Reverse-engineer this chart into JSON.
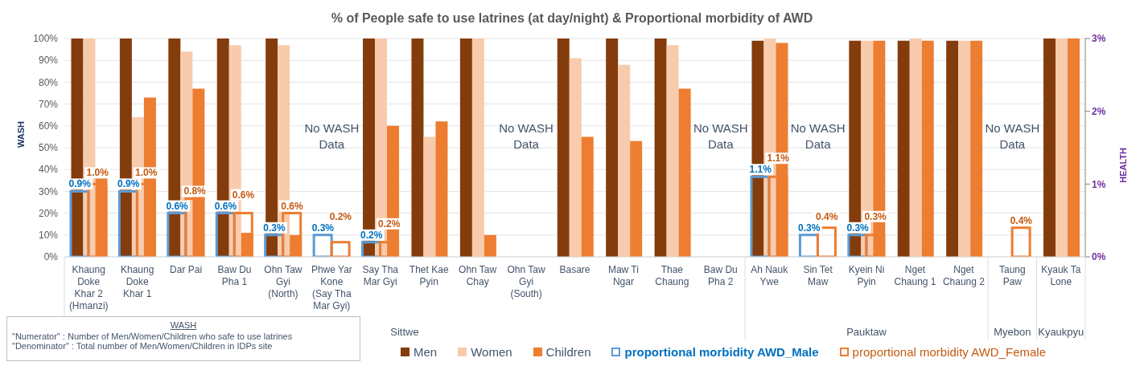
{
  "chart_data": {
    "type": "bar",
    "title": "% of People safe to use latrines (at day/night) & Proportional morbidity of AWD",
    "ylabel": "WASH",
    "y2label": "HEALTH",
    "categories": [
      "Khaung Doke Khar 2 (Hmanzi)",
      "Khaung Doke Khar 1",
      "Dar Pai",
      "Baw Du Pha 1",
      "Ohn Taw Gyi (North)",
      "Phwe Yar Kone (Say Tha Mar Gyi)",
      "Say Tha Mar Gyi",
      "Thet Kae Pyin",
      "Ohn Taw Chay",
      "Ohn Taw Gyi (South)",
      "Basare",
      "Maw Ti Ngar",
      "Thae Chaung",
      "Baw Du Pha 2",
      "Ah Nauk Ywe",
      "Sin Tet Maw",
      "Kyein Ni Pyin",
      "Nget Chaung 1",
      "Nget Chaung 2",
      "Taung Paw",
      "Kyauk Ta Lone"
    ],
    "series": [
      {
        "name": "Men",
        "color": "#843c0c",
        "values": [
          100,
          100,
          100,
          100,
          100,
          null,
          100,
          100,
          100,
          null,
          100,
          100,
          100,
          null,
          99,
          null,
          99,
          99,
          99,
          null,
          100
        ]
      },
      {
        "name": "Women",
        "color": "#f8cbad",
        "values": [
          100,
          64,
          94,
          97,
          97,
          null,
          100,
          55,
          100,
          null,
          91,
          88,
          97,
          null,
          100,
          null,
          99,
          100,
          99,
          null,
          100
        ]
      },
      {
        "name": "Children",
        "color": "#ed7d31",
        "values": [
          36,
          73,
          77,
          11,
          10,
          null,
          60,
          62,
          10,
          null,
          55,
          53,
          77,
          null,
          98,
          null,
          99,
          99,
          99,
          null,
          100
        ]
      },
      {
        "name": "proportional morbidity AWD_Male",
        "color": "#5b9bd5",
        "axis": "y2",
        "values": [
          0.9,
          0.9,
          0.6,
          0.6,
          0.3,
          0.3,
          0.2,
          null,
          null,
          null,
          null,
          null,
          null,
          null,
          1.1,
          0.3,
          0.3,
          null,
          null,
          null,
          null
        ],
        "value_labels": [
          "0.9%",
          "0.9%",
          "0.6%",
          "0.6%",
          "0.3%",
          "0.3%",
          "0.2%",
          null,
          null,
          null,
          null,
          null,
          null,
          null,
          "1.1%",
          "0.3%",
          "0.3%",
          null,
          null,
          null,
          null
        ]
      },
      {
        "name": "proportional morbidity AWD_Female",
        "color": "#ed7d31",
        "axis": "y2",
        "values": [
          1.0,
          1.0,
          0.8,
          0.6,
          0.6,
          0.2,
          0.2,
          null,
          null,
          null,
          null,
          null,
          null,
          null,
          1.1,
          0.4,
          0.3,
          null,
          null,
          0.4,
          null
        ],
        "value_labels": [
          "1.0%",
          "1.0%",
          "0.8%",
          "0.6%",
          "0.6%",
          "0.2%",
          "0.2%",
          null,
          null,
          null,
          null,
          null,
          null,
          null,
          "1.1%",
          "0.4%",
          "0.3%",
          null,
          null,
          "0.4%",
          null
        ]
      }
    ],
    "ylim": [
      0,
      100
    ],
    "yticks": [
      {
        "value": 0,
        "label": "0%"
      },
      {
        "value": 10,
        "label": "10%"
      },
      {
        "value": 20,
        "label": "20%"
      },
      {
        "value": 30,
        "label": "30%"
      },
      {
        "value": 40,
        "label": "40%"
      },
      {
        "value": 50,
        "label": "50%"
      },
      {
        "value": 60,
        "label": "60%"
      },
      {
        "value": 70,
        "label": "70%"
      },
      {
        "value": 80,
        "label": "80%"
      },
      {
        "value": 90,
        "label": "90%"
      },
      {
        "value": 100,
        "label": "100%"
      }
    ],
    "y2lim": [
      0,
      3
    ],
    "y2ticks": [
      {
        "value": 0,
        "label": "0%"
      },
      {
        "value": 1,
        "label": "1%"
      },
      {
        "value": 2,
        "label": "2%"
      },
      {
        "value": 3,
        "label": "3%"
      }
    ],
    "grid": "y",
    "legend": "bottom",
    "annotations": [
      "No WASH Data",
      "No WASH Data",
      "No WASH Data",
      "No WASH Data",
      "No WASH Data",
      "Sittwe",
      "Pauktaw",
      "Myebon",
      "Kyaukpyu",
      "WASH",
      "\"Numerator\" : Number of  Men/Women/Children who safe to use latrines",
      "\"Denominator\" : Total  number of Men/Women/Children in IDPs site"
    ]
  }
}
